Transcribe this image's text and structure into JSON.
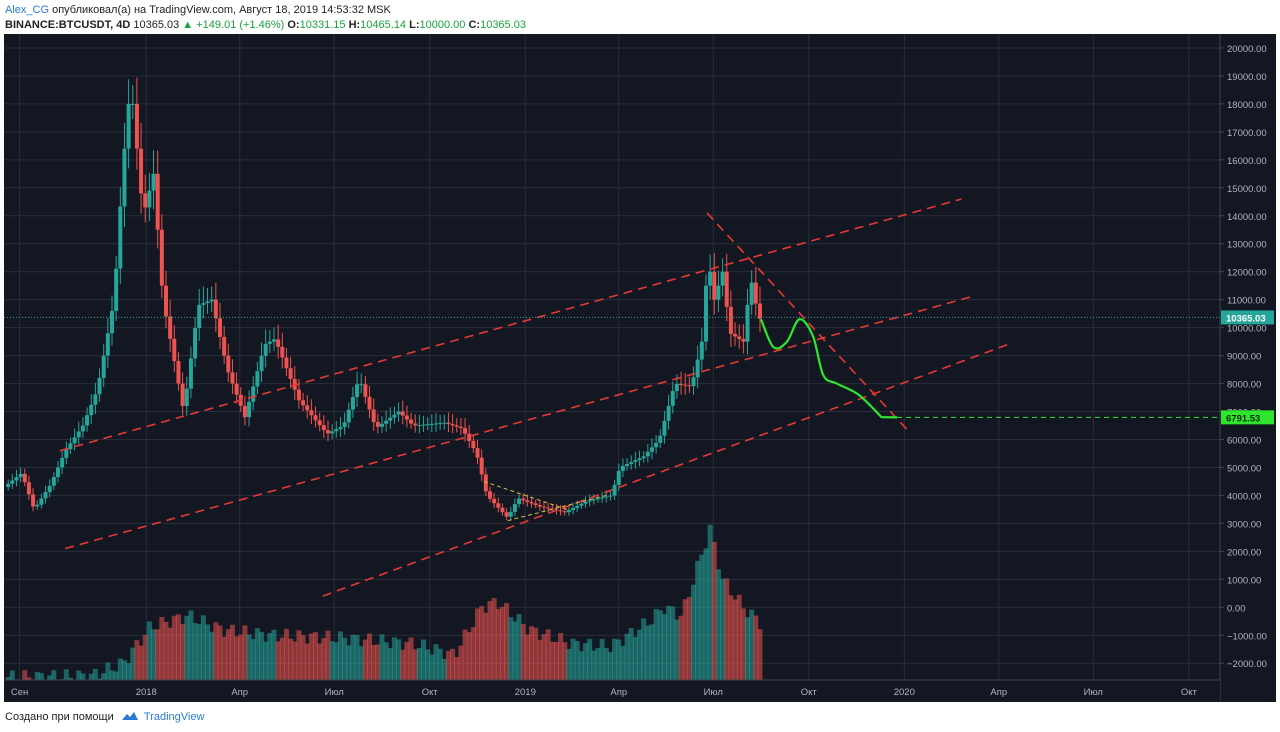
{
  "header": {
    "author": "Alex_CG",
    "published_text": "опубликовал(а) на TradingView.com, Август 18, 2019 14:53:32 MSK",
    "symbol": "BINANCE:BTCUSDT, 4D",
    "last": "10365.03",
    "change": "▲ +149.01 (+1.46%)",
    "o_label": "O:",
    "o_value": "10331.15",
    "h_label": "H:",
    "h_value": "10465.14",
    "l_label": "L:",
    "l_value": "10000.00",
    "c_label": "C:",
    "c_value": "10365.03"
  },
  "footer": {
    "created_with": "Создано при помощи",
    "brand": "TradingView"
  },
  "colors": {
    "background": "#131722",
    "grid": "#2a2e39",
    "up": "#26a69a",
    "down": "#ef5350",
    "channel": "#e53935",
    "projection": "#2ee62e",
    "target": "#2ee62e",
    "axis_text": "#b2b5be"
  },
  "chart_data": {
    "type": "candlestick",
    "symbol": "BINANCE:BTCUSDT",
    "interval": "4D",
    "x_range": [
      "2017-08-17",
      "2020-10-31"
    ],
    "y_range": [
      -2600,
      20500
    ],
    "y_ticks": [
      20000,
      19000,
      18000,
      17000,
      16000,
      15000,
      14000,
      13000,
      12000,
      11000,
      10000,
      9000,
      8000,
      7000,
      6000,
      5000,
      4000,
      3000,
      2000,
      1000,
      0,
      -1000,
      -2000
    ],
    "y_tick_labels": [
      "20000.00",
      "19000.00",
      "18000.00",
      "17000.00",
      "16000.00",
      "15000.00",
      "14000.00",
      "13000.00",
      "12000.00",
      "11000.00",
      "10000.00",
      "9000.00",
      "8000.00",
      "7000.00",
      "6000.00",
      "5000.00",
      "4000.00",
      "3000.00",
      "2000.00",
      "1000.00",
      "0.00",
      "−1000.00",
      "−2000.00"
    ],
    "x_ticks": [
      {
        "label": "Сен",
        "date": "2017-09-01"
      },
      {
        "label": "2018",
        "date": "2018-01-01"
      },
      {
        "label": "Апр",
        "date": "2018-04-01"
      },
      {
        "label": "Июл",
        "date": "2018-07-01"
      },
      {
        "label": "Окт",
        "date": "2018-10-01"
      },
      {
        "label": "2019",
        "date": "2019-01-01"
      },
      {
        "label": "Апр",
        "date": "2019-04-01"
      },
      {
        "label": "Июл",
        "date": "2019-07-01"
      },
      {
        "label": "Окт",
        "date": "2019-10-01"
      },
      {
        "label": "2020",
        "date": "2020-01-01"
      },
      {
        "label": "Апр",
        "date": "2020-04-01"
      },
      {
        "label": "Июл",
        "date": "2020-07-01"
      },
      {
        "label": "Окт",
        "date": "2020-10-01"
      }
    ],
    "price_anchors": [
      [
        "2017-08-17",
        4300
      ],
      [
        "2017-09-03",
        4800
      ],
      [
        "2017-09-15",
        3500
      ],
      [
        "2017-10-01",
        4400
      ],
      [
        "2017-10-15",
        5600
      ],
      [
        "2017-11-01",
        6500
      ],
      [
        "2017-11-15",
        7800
      ],
      [
        "2017-12-01",
        11000
      ],
      [
        "2017-12-10",
        16000
      ],
      [
        "2017-12-17",
        18800
      ],
      [
        "2017-12-29",
        14000
      ],
      [
        "2018-01-08",
        15500
      ],
      [
        "2018-01-17",
        11000
      ],
      [
        "2018-02-06",
        7000
      ],
      [
        "2018-02-20",
        10800
      ],
      [
        "2018-03-05",
        11000
      ],
      [
        "2018-03-20",
        8500
      ],
      [
        "2018-04-06",
        6800
      ],
      [
        "2018-04-25",
        9400
      ],
      [
        "2018-05-05",
        9600
      ],
      [
        "2018-05-28",
        7400
      ],
      [
        "2018-06-24",
        6200
      ],
      [
        "2018-07-10",
        6500
      ],
      [
        "2018-07-25",
        8200
      ],
      [
        "2018-08-10",
        6400
      ],
      [
        "2018-09-01",
        7000
      ],
      [
        "2018-09-15",
        6500
      ],
      [
        "2018-10-15",
        6600
      ],
      [
        "2018-11-01",
        6400
      ],
      [
        "2018-11-15",
        5500
      ],
      [
        "2018-11-25",
        4000
      ],
      [
        "2018-12-15",
        3200
      ],
      [
        "2018-12-25",
        3900
      ],
      [
        "2019-01-15",
        3600
      ],
      [
        "2019-02-08",
        3400
      ],
      [
        "2019-03-01",
        3800
      ],
      [
        "2019-03-25",
        4000
      ],
      [
        "2019-04-02",
        5000
      ],
      [
        "2019-04-25",
        5400
      ],
      [
        "2019-05-10",
        6000
      ],
      [
        "2019-05-25",
        8000
      ],
      [
        "2019-06-10",
        7900
      ],
      [
        "2019-06-20",
        9500
      ],
      [
        "2019-06-26",
        12500
      ],
      [
        "2019-07-02",
        11000
      ],
      [
        "2019-07-10",
        12000
      ],
      [
        "2019-07-17",
        9800
      ],
      [
        "2019-07-30",
        9500
      ],
      [
        "2019-08-06",
        11800
      ],
      [
        "2019-08-14",
        10300
      ],
      [
        "2019-08-17",
        10365
      ]
    ],
    "volume_anchors": [
      [
        "2017-08-17",
        -2500
      ],
      [
        "2017-11-10",
        -2450
      ],
      [
        "2017-12-10",
        -2000
      ],
      [
        "2018-01-05",
        -700
      ],
      [
        "2018-02-10",
        -300
      ],
      [
        "2018-03-15",
        -800
      ],
      [
        "2018-05-01",
        -1000
      ],
      [
        "2018-07-10",
        -1100
      ],
      [
        "2018-09-15",
        -1300
      ],
      [
        "2018-10-25",
        -1700
      ],
      [
        "2018-11-20",
        0
      ],
      [
        "2018-12-05",
        200
      ],
      [
        "2019-01-05",
        -800
      ],
      [
        "2019-02-15",
        -1300
      ],
      [
        "2019-03-25",
        -1400
      ],
      [
        "2019-05-01",
        -500
      ],
      [
        "2019-05-15",
        0
      ],
      [
        "2019-06-01",
        -300
      ],
      [
        "2019-06-28",
        2800
      ],
      [
        "2019-07-10",
        1000
      ],
      [
        "2019-07-30",
        0
      ],
      [
        "2019-08-17",
        -600
      ]
    ],
    "last_price": 10365.03,
    "last_price_label": "10365.03",
    "target_price": 6791.53,
    "target_price_label": "6791.53",
    "target_date": "2019-12-25",
    "annotations": {
      "channel_lines": [
        {
          "start": [
            "2017-10-10",
            5600
          ],
          "end": [
            "2020-02-25",
            14600
          ]
        },
        {
          "start": [
            "2017-10-15",
            2100
          ],
          "end": [
            "2020-03-05",
            11100
          ]
        },
        {
          "start": [
            "2018-06-20",
            400
          ],
          "end": [
            "2020-04-10",
            9400
          ]
        }
      ],
      "resistance_line": {
        "start": [
          "2019-06-25",
          14100
        ],
        "end": [
          "2020-01-05",
          6300
        ]
      },
      "wedge_lines": [
        {
          "start": [
            "2018-11-22",
            4500
          ],
          "end": [
            "2019-02-10",
            3500
          ]
        },
        {
          "start": [
            "2018-12-15",
            3100
          ],
          "end": [
            "2019-03-20",
            4000
          ]
        }
      ],
      "projection_path": [
        [
          "2019-08-16",
          10300
        ],
        [
          "2019-08-28",
          9300
        ],
        [
          "2019-09-10",
          9500
        ],
        [
          "2019-09-22",
          10300
        ],
        [
          "2019-10-05",
          9700
        ],
        [
          "2019-10-15",
          8300
        ],
        [
          "2019-10-28",
          8000
        ],
        [
          "2019-11-18",
          7600
        ],
        [
          "2019-12-10",
          6800
        ]
      ]
    }
  }
}
